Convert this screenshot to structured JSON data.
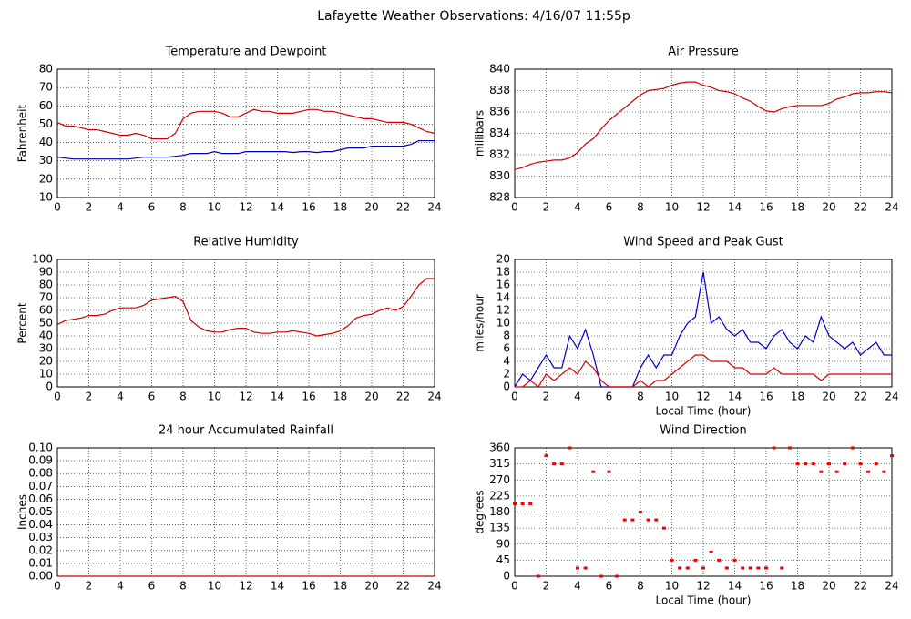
{
  "title": "Lafayette Weather Observations: 4/16/07 11:55p",
  "chart_data": [
    {
      "type": "line",
      "title": "Temperature and Dewpoint",
      "ylabel": "Fahrenheit",
      "x": [
        0,
        0.5,
        1,
        1.5,
        2,
        2.5,
        3,
        3.5,
        4,
        4.5,
        5,
        5.5,
        6,
        6.5,
        7,
        7.5,
        8,
        8.5,
        9,
        9.5,
        10,
        10.5,
        11,
        11.5,
        12,
        12.5,
        13,
        13.5,
        14,
        14.5,
        15,
        15.5,
        16,
        16.5,
        17,
        17.5,
        18,
        18.5,
        19,
        19.5,
        20,
        20.5,
        21,
        21.5,
        22,
        22.5,
        23,
        23.5,
        24
      ],
      "series": [
        {
          "color": "#cc0000",
          "values": [
            51,
            49,
            49,
            48,
            47,
            47,
            46,
            45,
            44,
            44,
            45,
            44,
            42,
            42,
            42,
            45,
            53,
            56,
            57,
            57,
            57,
            56,
            54,
            54,
            56,
            58,
            57,
            57,
            56,
            56,
            56,
            57,
            58,
            58,
            57,
            57,
            56,
            55,
            54,
            53,
            53,
            52,
            51,
            51,
            51,
            50,
            48,
            46,
            45
          ]
        },
        {
          "color": "#0000aa",
          "values": [
            32,
            31.5,
            31,
            31,
            31,
            31,
            31,
            31,
            31,
            31,
            31.5,
            32,
            32,
            32,
            32,
            32.5,
            33,
            34,
            34,
            34,
            35,
            34,
            34,
            34,
            35,
            35,
            35,
            35,
            35,
            35,
            34.5,
            35,
            35,
            34.5,
            35,
            35,
            36,
            37,
            37,
            37,
            38,
            38,
            38,
            38,
            38,
            39,
            41,
            41,
            41
          ]
        }
      ],
      "xlim": [
        0,
        24
      ],
      "xticks": [
        0,
        2,
        4,
        6,
        8,
        10,
        12,
        14,
        16,
        18,
        20,
        22,
        24
      ],
      "ylim": [
        10,
        80
      ],
      "yticks": [
        10,
        20,
        30,
        40,
        50,
        60,
        70,
        80
      ],
      "grid": true
    },
    {
      "type": "line",
      "title": "Air Pressure",
      "ylabel": "millibars",
      "x": [
        0,
        0.5,
        1,
        1.5,
        2,
        2.5,
        3,
        3.5,
        4,
        4.5,
        5,
        5.5,
        6,
        6.5,
        7,
        7.5,
        8,
        8.5,
        9,
        9.5,
        10,
        10.5,
        11,
        11.5,
        12,
        12.5,
        13,
        13.5,
        14,
        14.5,
        15,
        15.5,
        16,
        16.5,
        17,
        17.5,
        18,
        18.5,
        19,
        19.5,
        20,
        20.5,
        21,
        21.5,
        22,
        22.5,
        23,
        23.5,
        24
      ],
      "series": [
        {
          "color": "#cc0000",
          "values": [
            830.6,
            830.8,
            831.1,
            831.3,
            831.4,
            831.5,
            831.5,
            831.7,
            832.2,
            833.0,
            833.5,
            834.4,
            835.2,
            835.8,
            836.4,
            837.0,
            837.6,
            838.0,
            838.1,
            838.2,
            838.5,
            838.7,
            838.8,
            838.8,
            838.5,
            838.3,
            838.0,
            837.9,
            837.7,
            837.3,
            837.0,
            836.5,
            836.1,
            836.0,
            836.3,
            836.5,
            836.6,
            836.6,
            836.6,
            836.6,
            836.8,
            837.2,
            837.4,
            837.7,
            837.8,
            837.8,
            837.9,
            837.9,
            837.8
          ]
        }
      ],
      "xlim": [
        0,
        24
      ],
      "xticks": [
        0,
        2,
        4,
        6,
        8,
        10,
        12,
        14,
        16,
        18,
        20,
        22,
        24
      ],
      "ylim": [
        828,
        840
      ],
      "yticks": [
        828,
        830,
        832,
        834,
        836,
        838,
        840
      ],
      "grid": true
    },
    {
      "type": "line",
      "title": "Relative Humidity",
      "ylabel": "Percent",
      "x": [
        0,
        0.5,
        1,
        1.5,
        2,
        2.5,
        3,
        3.5,
        4,
        4.5,
        5,
        5.5,
        6,
        6.5,
        7,
        7.5,
        8,
        8.5,
        9,
        9.5,
        10,
        10.5,
        11,
        11.5,
        12,
        12.5,
        13,
        13.5,
        14,
        14.5,
        15,
        15.5,
        16,
        16.5,
        17,
        17.5,
        18,
        18.5,
        19,
        19.5,
        20,
        20.5,
        21,
        21.5,
        22,
        22.5,
        23,
        23.5,
        24
      ],
      "series": [
        {
          "color": "#cc0000",
          "values": [
            49,
            52,
            53,
            54,
            56,
            56,
            57,
            60,
            62,
            62,
            62,
            64,
            68,
            69,
            70,
            71,
            67,
            52,
            47,
            44,
            43,
            43,
            45,
            46,
            46,
            43,
            42,
            42,
            43,
            43,
            44,
            43,
            42,
            40,
            41,
            42,
            44,
            48,
            54,
            56,
            57,
            60,
            62,
            60,
            63,
            71,
            80,
            85,
            85
          ]
        }
      ],
      "xlim": [
        0,
        24
      ],
      "xticks": [
        0,
        2,
        4,
        6,
        8,
        10,
        12,
        14,
        16,
        18,
        20,
        22,
        24
      ],
      "ylim": [
        0,
        100
      ],
      "yticks": [
        0,
        10,
        20,
        30,
        40,
        50,
        60,
        70,
        80,
        90,
        100
      ],
      "grid": true
    },
    {
      "type": "line",
      "title": "Wind Speed and Peak Gust",
      "ylabel": "miles/hour",
      "xlabel": "Local Time (hour)",
      "x": [
        0,
        0.5,
        1,
        1.5,
        2,
        2.5,
        3,
        3.5,
        4,
        4.5,
        5,
        5.5,
        6,
        6.5,
        7,
        7.5,
        8,
        8.5,
        9,
        9.5,
        10,
        10.5,
        11,
        11.5,
        12,
        12.5,
        13,
        13.5,
        14,
        14.5,
        15,
        15.5,
        16,
        16.5,
        17,
        17.5,
        18,
        18.5,
        19,
        19.5,
        20,
        20.5,
        21,
        21.5,
        22,
        22.5,
        23,
        23.5,
        24
      ],
      "series": [
        {
          "color": "#0000cc",
          "values": [
            0,
            2,
            1,
            3,
            5,
            3,
            3,
            8,
            6,
            9,
            5,
            0,
            0,
            0,
            0,
            0,
            3,
            5,
            3,
            5,
            5,
            8,
            10,
            11,
            18,
            10,
            11,
            9,
            8,
            9,
            7,
            7,
            6,
            8,
            9,
            7,
            6,
            8,
            7,
            11,
            8,
            7,
            6,
            7,
            5,
            6,
            7,
            5,
            5
          ]
        },
        {
          "color": "#dd0000",
          "values": [
            0,
            0,
            1,
            0,
            2,
            1,
            2,
            3,
            2,
            4,
            3,
            1,
            0,
            0,
            0,
            0,
            1,
            0,
            1,
            1,
            2,
            3,
            4,
            5,
            5,
            4,
            4,
            4,
            3,
            3,
            2,
            2,
            2,
            3,
            2,
            2,
            2,
            2,
            2,
            1,
            2,
            2,
            2,
            2,
            2,
            2,
            2,
            2,
            2
          ]
        }
      ],
      "xlim": [
        0,
        24
      ],
      "xticks": [
        0,
        2,
        4,
        6,
        8,
        10,
        12,
        14,
        16,
        18,
        20,
        22,
        24
      ],
      "ylim": [
        0,
        20
      ],
      "yticks": [
        0,
        2,
        4,
        6,
        8,
        10,
        12,
        14,
        16,
        18,
        20
      ],
      "grid": true
    },
    {
      "type": "line",
      "title": "24 hour Accumulated Rainfall",
      "ylabel": "Inches",
      "x": [
        0,
        24
      ],
      "series": [
        {
          "color": "#cc0000",
          "values": [
            0,
            0
          ]
        }
      ],
      "xlim": [
        0,
        24
      ],
      "xticks": [
        0,
        2,
        4,
        6,
        8,
        10,
        12,
        14,
        16,
        18,
        20,
        22,
        24
      ],
      "ylim": [
        0,
        0.1
      ],
      "yticks": [
        {
          "value": 0,
          "label": "0.00"
        },
        0.01,
        0.02,
        0.03,
        0.04,
        0.05,
        0.06,
        0.07,
        0.08,
        0.09,
        {
          "value": 0.1,
          "label": "0.10"
        }
      ],
      "grid": true
    },
    {
      "type": "scatter",
      "title": "Wind Direction",
      "ylabel": "degrees",
      "xlabel": "Local Time (hour)",
      "x": [
        0,
        0.5,
        1,
        1.5,
        2,
        2.5,
        3,
        3.5,
        4,
        4.5,
        5,
        5.5,
        6,
        6.5,
        7,
        7.5,
        8,
        8.5,
        9,
        9.5,
        10,
        10.5,
        11,
        11.5,
        12,
        12.5,
        13,
        13.5,
        14,
        14.5,
        15,
        15.5,
        16,
        16.5,
        17,
        17.5,
        18,
        18.5,
        19,
        19.5,
        20,
        20.5,
        21,
        21.5,
        22,
        22.5,
        23,
        23.5,
        24
      ],
      "series": [
        {
          "color": "#ee0000",
          "values": [
            203,
            203,
            203,
            0,
            338,
            315,
            315,
            360,
            23,
            23,
            293,
            0,
            293,
            0,
            158,
            158,
            180,
            158,
            158,
            135,
            45,
            23,
            23,
            45,
            23,
            68,
            45,
            23,
            45,
            23,
            23,
            23,
            23,
            360,
            23,
            360,
            315,
            315,
            315,
            293,
            315,
            293,
            315,
            360,
            315,
            293,
            315,
            293,
            338
          ]
        }
      ],
      "xlim": [
        0,
        24
      ],
      "xticks": [
        0,
        2,
        4,
        6,
        8,
        10,
        12,
        14,
        16,
        18,
        20,
        22,
        24
      ],
      "ylim": [
        0,
        360
      ],
      "yticks": [
        0,
        45,
        90,
        135,
        180,
        225,
        270,
        315,
        360
      ],
      "grid": true
    }
  ]
}
